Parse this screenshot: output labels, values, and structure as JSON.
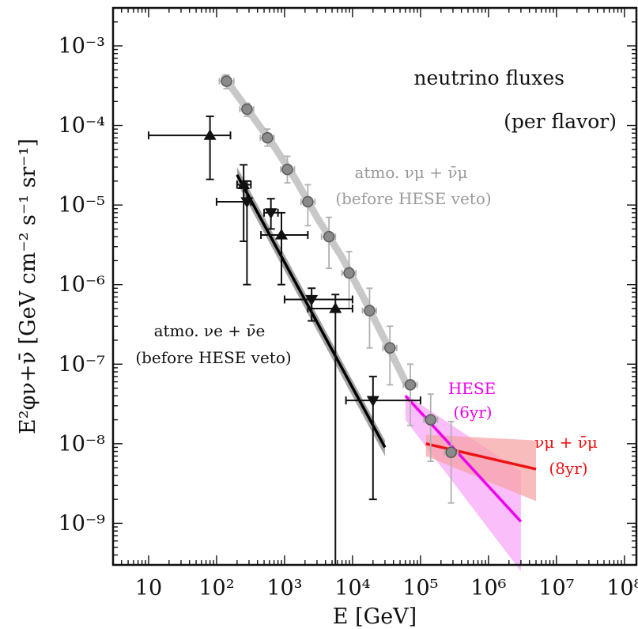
{
  "chart_data": {
    "type": "scatter",
    "title": "",
    "xlabel": "E [GeV]",
    "ylabel": "E²φν+ν̄ [GeV cm⁻² s⁻¹ sr⁻¹]",
    "x_scale": "log",
    "y_scale": "log",
    "xlim": [
      3,
      150000000.0
    ],
    "ylim": [
      3e-10,
      0.003
    ],
    "grid": false,
    "x_tick_values": [
      10,
      100,
      1000,
      10000,
      100000,
      1000000,
      10000000,
      100000000
    ],
    "x_tick_labels": [
      "10",
      "10²",
      "10³",
      "10⁴",
      "10⁵",
      "10⁶",
      "10⁷",
      "10⁸"
    ],
    "y_tick_values": [
      1e-09,
      1e-08,
      1e-07,
      1e-06,
      1e-05,
      0.0001,
      0.001
    ],
    "y_tick_labels": [
      "10⁻⁹",
      "10⁻⁸",
      "10⁻⁷",
      "10⁻⁶",
      "10⁻⁵",
      "10⁻⁴",
      "10⁻³"
    ],
    "annotations": {
      "main_line1": "neutrino fluxes",
      "main_line2": "(per flavor)",
      "numu_line1": "atmo. νμ + ν̄μ",
      "numu_line2": "(before HESE veto)",
      "nue_line1": "atmo. νe + ν̄e",
      "nue_line2": "(before HESE veto)",
      "hese_line1": "HESE",
      "hese_line2": "(6yr)",
      "numu8_line1": "νμ + ν̄μ",
      "numu8_line2": "(8yr)"
    },
    "colors": {
      "numu": "#9a9a9a",
      "numu_band": "#c8c8c8",
      "nue": "#000000",
      "nue_band": "#9a9a9a",
      "hese": "#ee00ee",
      "hese_band": "#f8a8f8",
      "numu8": "#ee1111",
      "numu8_band": "#f6a0a0"
    },
    "series": [
      {
        "kind": "atmo_numu_points",
        "points": [
          {
            "x": 140,
            "y": 0.00036,
            "xlo": 110,
            "xhi": 180,
            "ylo": 0.00029,
            "yhi": 0.00043
          },
          {
            "x": 280,
            "y": 0.00016,
            "xlo": 220,
            "xhi": 350,
            "ylo": 0.00013,
            "yhi": 0.00019
          },
          {
            "x": 560,
            "y": 7e-05,
            "xlo": 440,
            "xhi": 700,
            "ylo": 5.5e-05,
            "yhi": 9e-05
          },
          {
            "x": 1100,
            "y": 2.8e-05,
            "xlo": 880,
            "xhi": 1400,
            "ylo": 1.9e-05,
            "yhi": 4.1e-05
          },
          {
            "x": 2200,
            "y": 1.1e-05,
            "xlo": 1750,
            "xhi": 2800,
            "ylo": 5.5e-06,
            "yhi": 1.8e-05
          },
          {
            "x": 4500,
            "y": 4e-06,
            "xlo": 3500,
            "xhi": 5600,
            "ylo": 1.6e-06,
            "yhi": 7e-06
          },
          {
            "x": 8900,
            "y": 1.4e-06,
            "xlo": 7000,
            "xhi": 11200,
            "ylo": 5e-07,
            "yhi": 2.6e-06
          },
          {
            "x": 17800,
            "y": 4.7e-07,
            "xlo": 14000,
            "xhi": 22400,
            "ylo": 1.6e-07,
            "yhi": 9e-07
          },
          {
            "x": 35500,
            "y": 1.6e-07,
            "xlo": 28000,
            "xhi": 44700,
            "ylo": 5.5e-08,
            "yhi": 3e-07
          },
          {
            "x": 70800,
            "y": 5.5e-08,
            "xlo": 56000,
            "xhi": 89000,
            "ylo": 1.7e-08,
            "yhi": 1e-07
          },
          {
            "x": 141000,
            "y": 2e-08,
            "xlo": 112000,
            "xhi": 178000,
            "ylo": 6e-09,
            "yhi": 4.2e-08
          },
          {
            "x": 282000,
            "y": 7.8e-09,
            "xlo": 224000,
            "xhi": 355000,
            "ylo": 1.8e-09,
            "yhi": 1.9e-08
          }
        ]
      },
      {
        "kind": "atmo_numu_curve",
        "points": [
          [
            130,
            0.0004
          ],
          [
            300,
            0.00015
          ],
          [
            700,
            5.5e-05
          ],
          [
            1500,
            2e-05
          ],
          [
            3000,
            7e-06
          ],
          [
            7000,
            2.2e-06
          ],
          [
            15000,
            6.5e-07
          ],
          [
            30000,
            2e-07
          ],
          [
            60000,
            6e-08
          ]
        ]
      },
      {
        "kind": "atmo_nue_line",
        "x": [
          200,
          30000
        ],
        "y": [
          2.4e-05,
          9e-09
        ],
        "band_upper": [
          3e-05,
          1.1e-08
        ],
        "band_lower": [
          1.9e-05,
          7e-09
        ]
      },
      {
        "kind": "atmo_nue_up_triangles",
        "points": [
          {
            "x": 80,
            "y": 7.5e-05,
            "xlo": 10,
            "xhi": 160,
            "ylo": 2.1e-05,
            "yhi": 0.00013
          },
          {
            "x": 250,
            "y": 1.8e-05,
            "xlo": 200,
            "xhi": 320,
            "ylo": 3.5e-06,
            "yhi": 3.2e-05
          },
          {
            "x": 900,
            "y": 4.2e-06,
            "xlo": 450,
            "xhi": 2200,
            "ylo": 1e-06,
            "yhi": 8e-06
          },
          {
            "x": 5600,
            "y": 5e-07,
            "xlo": 2200,
            "xhi": 10000,
            "ylo": 3e-10,
            "yhi": 7.5e-07
          }
        ]
      },
      {
        "kind": "atmo_nue_down_triangles",
        "points": [
          {
            "x": 280,
            "y": 1.1e-05,
            "xlo": 100,
            "xhi": 320,
            "ylo": 1e-06,
            "yhi": 2e-05
          },
          {
            "x": 630,
            "y": 8e-06,
            "xlo": 500,
            "xhi": 800,
            "ylo": 5e-06,
            "yhi": 1.2e-05
          },
          {
            "x": 2500,
            "y": 6.5e-07,
            "xlo": 1000,
            "xhi": 10000,
            "ylo": 3.5e-07,
            "yhi": 9e-07
          },
          {
            "x": 20000,
            "y": 3.5e-08,
            "xlo": 8000,
            "xhi": 100000,
            "ylo": 2e-09,
            "yhi": 7e-08
          }
        ]
      },
      {
        "kind": "hese_6yr",
        "x": [
          60000,
          3000000
        ],
        "y": [
          4e-08,
          1.05e-09
        ],
        "band_upper": [
          4.2e-08,
          4.5e-09
        ],
        "band_lower": [
          2e-08,
          2.5e-10
        ]
      },
      {
        "kind": "numu_8yr",
        "x": [
          120000,
          5000000
        ],
        "y": [
          1e-08,
          4.8e-09
        ],
        "band_upper": [
          1.3e-08,
          1.1e-08
        ],
        "band_lower": [
          7e-09,
          1.9e-09
        ]
      }
    ]
  }
}
